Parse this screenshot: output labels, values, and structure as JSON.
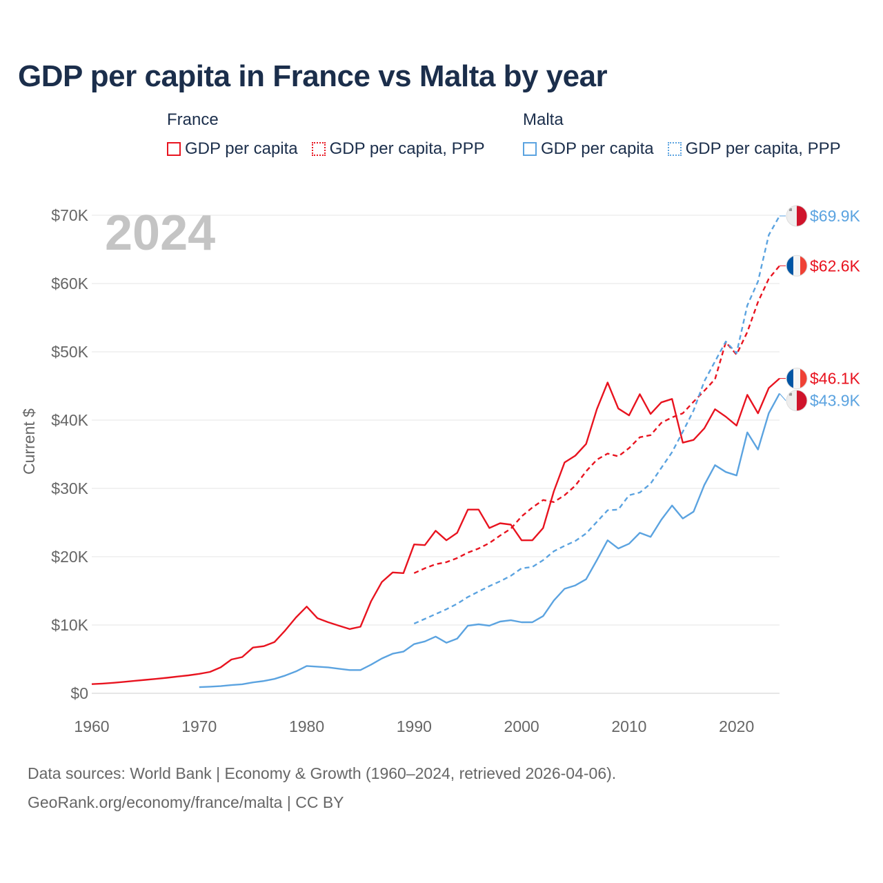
{
  "title": "GDP per capita in France vs Malta by year",
  "legend": {
    "groups": [
      {
        "name": "France",
        "items": [
          "GDP per capita",
          "GDP per capita, PPP"
        ]
      },
      {
        "name": "Malta",
        "items": [
          "GDP per capita",
          "GDP per capita, PPP"
        ]
      }
    ]
  },
  "year_watermark": "2024",
  "footer": {
    "line1": "Data sources: World Bank | Economy & Growth (1960–2024, retrieved 2026-04-06).",
    "line2": "GeoRank.org/economy/france/malta | CC BY"
  },
  "colors": {
    "france": "#e8131f",
    "malta": "#5ba3e0",
    "title": "#1b2e4b",
    "grid": "#e6e6e6",
    "axis_text": "#666666",
    "watermark": "#c4c4c4"
  },
  "chart_data": {
    "type": "line",
    "title": "GDP per capita in France vs Malta by year",
    "xlabel": "",
    "ylabel": "Current $",
    "xlim": [
      1960,
      2024
    ],
    "ylim": [
      0,
      70000
    ],
    "x_ticks": [
      1960,
      1970,
      1980,
      1990,
      2000,
      2010,
      2020
    ],
    "x_tick_labels": [
      "1960",
      "1970",
      "1980",
      "1990",
      "2000",
      "2010",
      "2020"
    ],
    "y_ticks": [
      0,
      10000,
      20000,
      30000,
      40000,
      50000,
      60000,
      70000
    ],
    "y_tick_labels": [
      "$0",
      "$10K",
      "$20K",
      "$30K",
      "$40K",
      "$50K",
      "$60K",
      "$70K"
    ],
    "grid": true,
    "series": [
      {
        "name": "France — GDP per capita",
        "country": "France",
        "style": "solid",
        "color": "#e8131f",
        "end_label": "$46.1K",
        "points": [
          [
            1960,
            1340
          ],
          [
            1961,
            1420
          ],
          [
            1962,
            1540
          ],
          [
            1963,
            1680
          ],
          [
            1964,
            1830
          ],
          [
            1965,
            1970
          ],
          [
            1966,
            2110
          ],
          [
            1967,
            2270
          ],
          [
            1968,
            2450
          ],
          [
            1969,
            2630
          ],
          [
            1970,
            2850
          ],
          [
            1971,
            3130
          ],
          [
            1972,
            3800
          ],
          [
            1973,
            4950
          ],
          [
            1974,
            5300
          ],
          [
            1975,
            6700
          ],
          [
            1976,
            6900
          ],
          [
            1977,
            7500
          ],
          [
            1978,
            9200
          ],
          [
            1979,
            11100
          ],
          [
            1980,
            12700
          ],
          [
            1981,
            11000
          ],
          [
            1982,
            10400
          ],
          [
            1983,
            9900
          ],
          [
            1984,
            9400
          ],
          [
            1985,
            9750
          ],
          [
            1986,
            13500
          ],
          [
            1987,
            16300
          ],
          [
            1988,
            17700
          ],
          [
            1989,
            17600
          ],
          [
            1990,
            21800
          ],
          [
            1991,
            21700
          ],
          [
            1992,
            23800
          ],
          [
            1993,
            22400
          ],
          [
            1994,
            23500
          ],
          [
            1995,
            26900
          ],
          [
            1996,
            26900
          ],
          [
            1997,
            24200
          ],
          [
            1998,
            24900
          ],
          [
            1999,
            24700
          ],
          [
            2000,
            22400
          ],
          [
            2001,
            22400
          ],
          [
            2002,
            24200
          ],
          [
            2003,
            29600
          ],
          [
            2004,
            33800
          ],
          [
            2005,
            34800
          ],
          [
            2006,
            36500
          ],
          [
            2007,
            41600
          ],
          [
            2008,
            45500
          ],
          [
            2009,
            41700
          ],
          [
            2010,
            40700
          ],
          [
            2011,
            43800
          ],
          [
            2012,
            40900
          ],
          [
            2013,
            42600
          ],
          [
            2014,
            43100
          ],
          [
            2015,
            36700
          ],
          [
            2016,
            37100
          ],
          [
            2017,
            38800
          ],
          [
            2018,
            41600
          ],
          [
            2019,
            40500
          ],
          [
            2020,
            39200
          ],
          [
            2021,
            43700
          ],
          [
            2022,
            41000
          ],
          [
            2023,
            44700
          ],
          [
            2024,
            46100
          ]
        ]
      },
      {
        "name": "France — GDP per capita, PPP",
        "country": "France",
        "style": "dashed",
        "color": "#e8131f",
        "end_label": "$62.6K",
        "points": [
          [
            1990,
            17600
          ],
          [
            1991,
            18300
          ],
          [
            1992,
            18900
          ],
          [
            1993,
            19200
          ],
          [
            1994,
            19800
          ],
          [
            1995,
            20600
          ],
          [
            1996,
            21200
          ],
          [
            1997,
            22000
          ],
          [
            1998,
            23100
          ],
          [
            1999,
            24100
          ],
          [
            2000,
            25900
          ],
          [
            2001,
            27200
          ],
          [
            2002,
            28300
          ],
          [
            2003,
            28000
          ],
          [
            2004,
            29000
          ],
          [
            2005,
            30400
          ],
          [
            2006,
            32500
          ],
          [
            2007,
            34200
          ],
          [
            2008,
            35100
          ],
          [
            2009,
            34700
          ],
          [
            2010,
            35900
          ],
          [
            2011,
            37500
          ],
          [
            2012,
            37800
          ],
          [
            2013,
            39600
          ],
          [
            2014,
            40400
          ],
          [
            2015,
            41000
          ],
          [
            2016,
            42700
          ],
          [
            2017,
            44300
          ],
          [
            2018,
            46000
          ],
          [
            2019,
            51400
          ],
          [
            2020,
            49600
          ],
          [
            2021,
            52900
          ],
          [
            2022,
            57300
          ],
          [
            2023,
            60700
          ],
          [
            2024,
            62600
          ]
        ]
      },
      {
        "name": "Malta — GDP per capita",
        "country": "Malta",
        "style": "solid",
        "color": "#5ba3e0",
        "end_label": "$43.9K",
        "points": [
          [
            1970,
            900
          ],
          [
            1971,
            970
          ],
          [
            1972,
            1050
          ],
          [
            1973,
            1200
          ],
          [
            1974,
            1320
          ],
          [
            1975,
            1600
          ],
          [
            1976,
            1800
          ],
          [
            1977,
            2100
          ],
          [
            1978,
            2600
          ],
          [
            1979,
            3200
          ],
          [
            1980,
            4000
          ],
          [
            1981,
            3900
          ],
          [
            1982,
            3800
          ],
          [
            1983,
            3600
          ],
          [
            1984,
            3400
          ],
          [
            1985,
            3400
          ],
          [
            1986,
            4200
          ],
          [
            1987,
            5100
          ],
          [
            1988,
            5800
          ],
          [
            1989,
            6100
          ],
          [
            1990,
            7200
          ],
          [
            1991,
            7600
          ],
          [
            1992,
            8300
          ],
          [
            1993,
            7400
          ],
          [
            1994,
            8000
          ],
          [
            1995,
            9900
          ],
          [
            1996,
            10100
          ],
          [
            1997,
            9900
          ],
          [
            1998,
            10500
          ],
          [
            1999,
            10700
          ],
          [
            2000,
            10400
          ],
          [
            2001,
            10400
          ],
          [
            2002,
            11300
          ],
          [
            2003,
            13600
          ],
          [
            2004,
            15300
          ],
          [
            2005,
            15800
          ],
          [
            2006,
            16700
          ],
          [
            2007,
            19500
          ],
          [
            2008,
            22400
          ],
          [
            2009,
            21200
          ],
          [
            2010,
            21900
          ],
          [
            2011,
            23500
          ],
          [
            2012,
            22900
          ],
          [
            2013,
            25400
          ],
          [
            2014,
            27500
          ],
          [
            2015,
            25600
          ],
          [
            2016,
            26600
          ],
          [
            2017,
            30500
          ],
          [
            2018,
            33400
          ],
          [
            2019,
            32400
          ],
          [
            2020,
            31900
          ],
          [
            2021,
            38200
          ],
          [
            2022,
            35700
          ],
          [
            2023,
            41000
          ],
          [
            2024,
            43900
          ]
        ]
      },
      {
        "name": "Malta — GDP per capita, PPP",
        "country": "Malta",
        "style": "dashed",
        "color": "#5ba3e0",
        "end_label": "$69.9K",
        "points": [
          [
            1990,
            10200
          ],
          [
            1991,
            10900
          ],
          [
            1992,
            11600
          ],
          [
            1993,
            12300
          ],
          [
            1994,
            13100
          ],
          [
            1995,
            14100
          ],
          [
            1996,
            14900
          ],
          [
            1997,
            15700
          ],
          [
            1998,
            16400
          ],
          [
            1999,
            17200
          ],
          [
            2000,
            18300
          ],
          [
            2001,
            18500
          ],
          [
            2002,
            19500
          ],
          [
            2003,
            20800
          ],
          [
            2004,
            21600
          ],
          [
            2005,
            22300
          ],
          [
            2006,
            23400
          ],
          [
            2007,
            25100
          ],
          [
            2008,
            26800
          ],
          [
            2009,
            26900
          ],
          [
            2010,
            29000
          ],
          [
            2011,
            29400
          ],
          [
            2012,
            30700
          ],
          [
            2013,
            33000
          ],
          [
            2014,
            35300
          ],
          [
            2015,
            38300
          ],
          [
            2016,
            41400
          ],
          [
            2017,
            45700
          ],
          [
            2018,
            48600
          ],
          [
            2019,
            51500
          ],
          [
            2020,
            49800
          ],
          [
            2021,
            56800
          ],
          [
            2022,
            60300
          ],
          [
            2023,
            67100
          ],
          [
            2024,
            69900
          ]
        ]
      }
    ]
  }
}
